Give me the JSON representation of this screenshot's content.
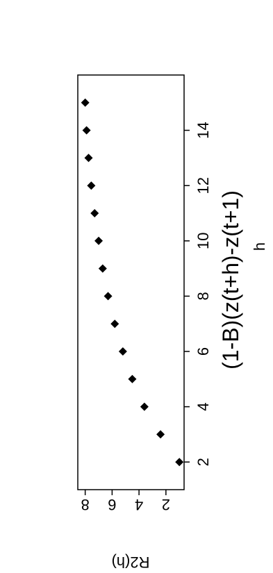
{
  "chart_data": {
    "type": "scatter",
    "title": "(1-B)(z(t+h)-z(t+1)",
    "xlabel": "h",
    "ylabel": "R2(h)",
    "x": [
      2,
      3,
      4,
      5,
      6,
      7,
      8,
      9,
      10,
      11,
      12,
      13,
      14,
      15
    ],
    "y": [
      1.0,
      2.4,
      3.6,
      4.5,
      5.2,
      5.8,
      6.3,
      6.7,
      7.0,
      7.3,
      7.55,
      7.75,
      7.9,
      8.0
    ],
    "xlim": [
      1,
      16
    ],
    "ylim": [
      0.65,
      8.55
    ],
    "xticks": [
      2,
      4,
      6,
      8,
      10,
      12,
      14
    ],
    "yticks": [
      2,
      4,
      6,
      8
    ],
    "grid": false,
    "legend": "none",
    "marker": "diamond",
    "marker_color": "#000000"
  }
}
